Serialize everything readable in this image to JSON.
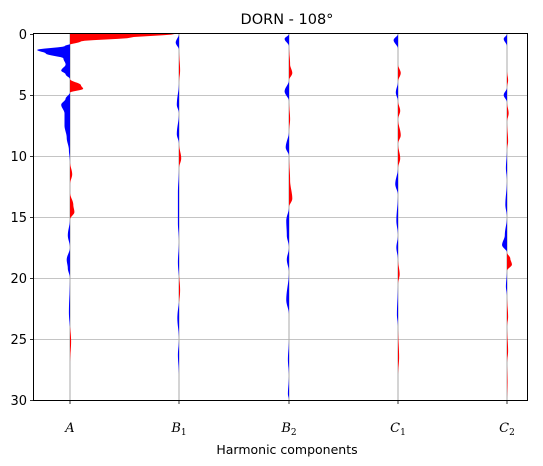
{
  "chart_data": {
    "type": "area",
    "title": "DORN - 108°",
    "xlabel": "Harmonic components",
    "ylabel": "",
    "ylim": [
      30,
      0
    ],
    "yticks": [
      0,
      5,
      10,
      15,
      20,
      25,
      30
    ],
    "grid": {
      "y": true,
      "x": false
    },
    "colors": {
      "positive": "#ff0000",
      "negative": "#0000ff",
      "baseline": "#aaaaaa"
    },
    "categories": [
      {
        "base": "A",
        "sub": ""
      },
      {
        "base": "B",
        "sub": "1"
      },
      {
        "base": "B",
        "sub": "2"
      },
      {
        "base": "C",
        "sub": "1"
      },
      {
        "base": "C",
        "sub": "2"
      }
    ],
    "series": [
      {
        "label": "A",
        "samples": [
          [
            0,
            0.95
          ],
          [
            0.3,
            0.55
          ],
          [
            0.6,
            0.1
          ],
          [
            1.0,
            -0.05
          ],
          [
            1.3,
            -0.3
          ],
          [
            1.6,
            -0.22
          ],
          [
            2.0,
            -0.06
          ],
          [
            2.5,
            -0.04
          ],
          [
            3.0,
            -0.08
          ],
          [
            3.3,
            -0.04
          ],
          [
            3.7,
            0.0
          ],
          [
            4.2,
            0.1
          ],
          [
            4.5,
            0.12
          ],
          [
            4.8,
            0.0
          ],
          [
            5.3,
            -0.04
          ],
          [
            5.8,
            -0.08
          ],
          [
            6.5,
            -0.05
          ],
          [
            7.5,
            -0.05
          ],
          [
            8.5,
            -0.03
          ],
          [
            9.5,
            -0.01
          ],
          [
            10.5,
            0.0
          ],
          [
            11.5,
            0.02
          ],
          [
            12.3,
            0.0
          ],
          [
            13.0,
            0.0
          ],
          [
            14.0,
            0.03
          ],
          [
            14.6,
            0.04
          ],
          [
            15.2,
            0.0
          ],
          [
            16.5,
            -0.02
          ],
          [
            17.5,
            0.0
          ],
          [
            18.5,
            -0.03
          ],
          [
            19.2,
            -0.02
          ],
          [
            20.0,
            0.0
          ],
          [
            22.8,
            -0.01
          ],
          [
            25.2,
            0.01
          ],
          [
            27.0,
            0.0
          ],
          [
            30.0,
            0.0
          ]
        ]
      },
      {
        "label": "B1",
        "samples": [
          [
            0,
            0.0
          ],
          [
            0.7,
            -0.03
          ],
          [
            1.3,
            0.0
          ],
          [
            3.0,
            0.01
          ],
          [
            4.0,
            0.0
          ],
          [
            5.8,
            -0.02
          ],
          [
            6.5,
            0.0
          ],
          [
            8.2,
            -0.02
          ],
          [
            9.0,
            0.0
          ],
          [
            10.2,
            0.02
          ],
          [
            11.0,
            0.0
          ],
          [
            13.0,
            -0.01
          ],
          [
            15.5,
            -0.01
          ],
          [
            17.0,
            0.0
          ],
          [
            18.7,
            -0.01
          ],
          [
            21.0,
            0.01
          ],
          [
            23.3,
            -0.015
          ],
          [
            25.0,
            0.0
          ],
          [
            26.3,
            -0.01
          ],
          [
            28.0,
            0.0
          ],
          [
            30.0,
            0.0
          ]
        ]
      },
      {
        "label": "B2",
        "samples": [
          [
            0,
            0.0
          ],
          [
            0.4,
            -0.04
          ],
          [
            1.0,
            0.0
          ],
          [
            2.5,
            0.01
          ],
          [
            3.2,
            0.03
          ],
          [
            3.8,
            0.0
          ],
          [
            4.7,
            -0.04
          ],
          [
            5.5,
            0.0
          ],
          [
            7.0,
            0.01
          ],
          [
            8.0,
            0.0
          ],
          [
            9.3,
            -0.03
          ],
          [
            10.0,
            0.0
          ],
          [
            12.0,
            0.01
          ],
          [
            13.5,
            0.03
          ],
          [
            14.2,
            0.0
          ],
          [
            15.3,
            -0.025
          ],
          [
            16.5,
            -0.02
          ],
          [
            17.5,
            0.0
          ],
          [
            18.5,
            -0.02
          ],
          [
            19.5,
            0.0
          ],
          [
            21.8,
            -0.025
          ],
          [
            23.0,
            0.0
          ],
          [
            25.0,
            0.0
          ],
          [
            26.7,
            -0.01
          ],
          [
            28.0,
            0.0
          ],
          [
            29.5,
            -0.01
          ],
          [
            30.0,
            0.0
          ]
        ]
      },
      {
        "label": "C1",
        "samples": [
          [
            0,
            0.0
          ],
          [
            0.5,
            -0.04
          ],
          [
            1.2,
            0.0
          ],
          [
            2.5,
            0.0
          ],
          [
            3.2,
            0.025
          ],
          [
            3.9,
            0.0
          ],
          [
            4.8,
            -0.02
          ],
          [
            5.5,
            0.0
          ],
          [
            6.3,
            0.02
          ],
          [
            7.0,
            0.0
          ],
          [
            8.3,
            0.025
          ],
          [
            9.0,
            0.0
          ],
          [
            10.2,
            0.02
          ],
          [
            11.0,
            0.0
          ],
          [
            12.3,
            -0.025
          ],
          [
            13.2,
            0.0
          ],
          [
            15.3,
            -0.015
          ],
          [
            16.5,
            0.0
          ],
          [
            17.5,
            -0.015
          ],
          [
            18.5,
            0.0
          ],
          [
            19.7,
            0.015
          ],
          [
            20.5,
            0.0
          ],
          [
            23.0,
            -0.01
          ],
          [
            24.0,
            0.0
          ],
          [
            26.5,
            0.01
          ],
          [
            28.0,
            0.0
          ],
          [
            30.0,
            0.0
          ]
        ]
      },
      {
        "label": "C2",
        "samples": [
          [
            0,
            0.0
          ],
          [
            0.4,
            -0.03
          ],
          [
            1.0,
            0.0
          ],
          [
            3.0,
            0.0
          ],
          [
            3.8,
            0.01
          ],
          [
            4.4,
            0.0
          ],
          [
            5.0,
            -0.03
          ],
          [
            5.6,
            0.0
          ],
          [
            6.5,
            0.015
          ],
          [
            7.2,
            0.0
          ],
          [
            8.8,
            0.01
          ],
          [
            9.5,
            0.0
          ],
          [
            11.0,
            -0.01
          ],
          [
            12.0,
            0.0
          ],
          [
            14.0,
            -0.015
          ],
          [
            15.0,
            0.0
          ],
          [
            16.5,
            -0.02
          ],
          [
            17.3,
            -0.045
          ],
          [
            17.9,
            0.0
          ],
          [
            18.4,
            0.03
          ],
          [
            18.9,
            0.045
          ],
          [
            19.4,
            0.0
          ],
          [
            20.7,
            -0.01
          ],
          [
            21.5,
            0.0
          ],
          [
            23.2,
            0.01
          ],
          [
            24.0,
            0.0
          ],
          [
            26.0,
            0.01
          ],
          [
            27.0,
            0.0
          ],
          [
            28.5,
            0.005
          ],
          [
            30.0,
            0.0
          ]
        ]
      }
    ]
  }
}
